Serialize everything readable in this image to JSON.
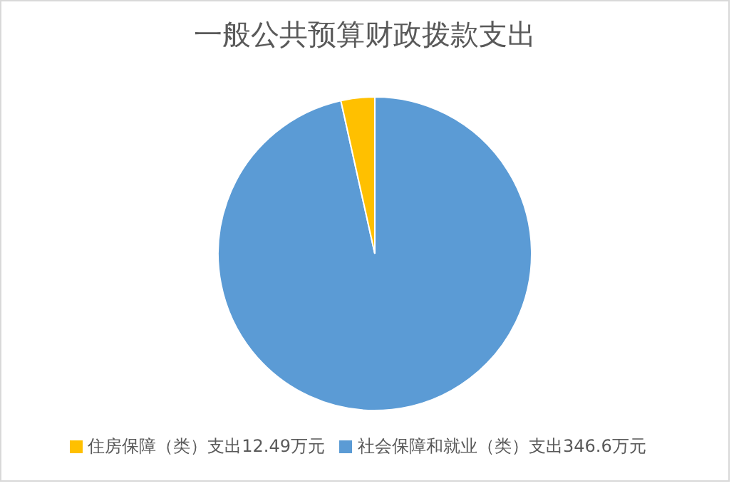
{
  "chart_data": {
    "type": "pie",
    "title": "一般公共预算财政拨款支出",
    "categories": [
      "社会保障和就业（类）支出346.6万元",
      "住房保障（类）支出12.49万元"
    ],
    "values": [
      346.6,
      12.49
    ],
    "colors": [
      "#5b9bd5",
      "#ffc000"
    ],
    "legend": "bottom"
  }
}
